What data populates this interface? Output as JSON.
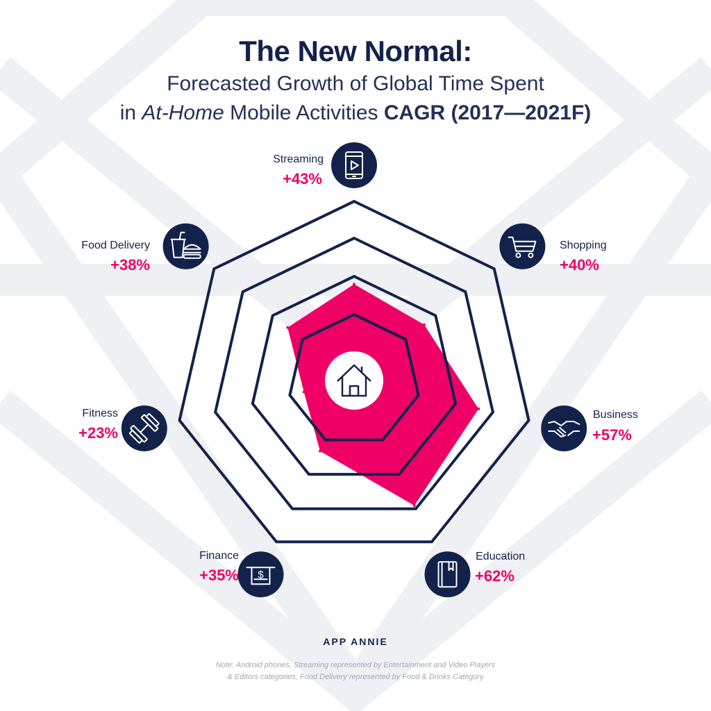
{
  "title": {
    "main": "The New Normal:",
    "line1": "Forecasted Growth of Global Time Spent",
    "line2_prefix": "in ",
    "line2_italic": "At-Home",
    "line2_mid": " Mobile Activities ",
    "line2_bold": "CAGR (2017—2021F)"
  },
  "colors": {
    "navy": "#13224a",
    "accent": "#ee0066",
    "background_pattern": "#eef0f4",
    "note": "#a2a7b8"
  },
  "chart_data": {
    "type": "radar",
    "title": "The New Normal: Forecasted Growth of Global Time Spent in At-Home Mobile Activities CAGR (2017—2021F)",
    "unit": "%",
    "categories": [
      "Streaming",
      "Shopping",
      "Business",
      "Education",
      "Finance",
      "Fitness",
      "Food Delivery"
    ],
    "values": [
      43,
      40,
      57,
      62,
      35,
      23,
      38
    ],
    "labels": [
      "+43%",
      "+40%",
      "+57%",
      "+62%",
      "+35%",
      "+23%",
      "+38%"
    ],
    "icons": [
      "phone-play-icon",
      "shopping-cart-icon",
      "handshake-icon",
      "book-icon",
      "atm-cash-icon",
      "dumbbell-icon",
      "drink-burger-icon"
    ],
    "center_icon": "house-icon",
    "grid_rings": 4
  },
  "brand": "APP ANNIE",
  "note": {
    "line1": "Note: Android phones; Streaming represented by Entertainment and Video Players",
    "line2": "& Editors categories; Food Delivery represented by Food & Drinks Category"
  }
}
